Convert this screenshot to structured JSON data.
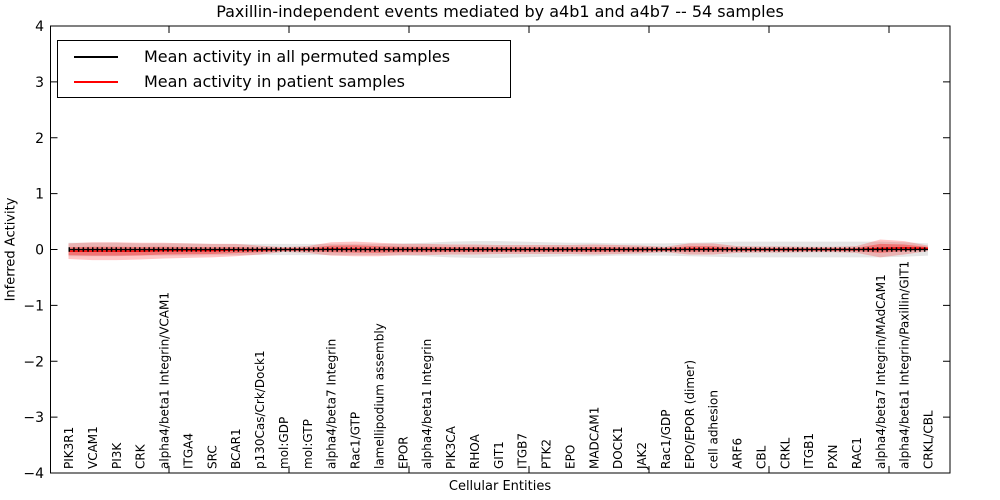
{
  "chart_data": {
    "type": "line",
    "title": "Paxillin-independent events mediated by a4b1 and a4b7 -- 54 samples",
    "xlabel": "Cellular Entities",
    "ylabel": "Inferred Activity",
    "ylim": [
      -4,
      4
    ],
    "yticks": [
      "4",
      "3",
      "2",
      "1",
      "0",
      "−1",
      "−2",
      "−3",
      "−4"
    ],
    "grid": false,
    "legend_position": "upper left",
    "categories": [
      "PIK3R1",
      "VCAM1",
      "PI3K",
      "CRK",
      "alpha4/beta1 Integrin/VCAM1",
      "ITGA4",
      "SRC",
      "BCAR1",
      "p130Cas/Crk/Dock1",
      "mol:GDP",
      "mol:GTP",
      "alpha4/beta7 Integrin",
      "Rac1/GTP",
      "lamellipodium assembly",
      "EPOR",
      "alpha4/beta1 Integrin",
      "PIK3CA",
      "RHOA",
      "GIT1",
      "ITGB7",
      "PTK2",
      "EPO",
      "MADCAM1",
      "DOCK1",
      "JAK2",
      "Rac1/GDP",
      "EPO/EPOR (dimer)",
      "cell adhesion",
      "ARF6",
      "CBL",
      "CRKL",
      "ITGB1",
      "PXN",
      "RAC1",
      "alpha4/beta7 Integrin/MAdCAM1",
      "alpha4/beta1 Integrin/Paxillin/GIT1",
      "CRKL/CBL"
    ],
    "series": [
      {
        "name": "Mean activity in all permuted samples",
        "color": "#000000",
        "band_color": "rgba(0,0,0,0.10)",
        "values": [
          0,
          0,
          0,
          0,
          0,
          0,
          0,
          0,
          0,
          0,
          0,
          0,
          0,
          0,
          0,
          0,
          0,
          0,
          0,
          0,
          0,
          0,
          0,
          0,
          0,
          0,
          0,
          0,
          0,
          0,
          0,
          0,
          0,
          0,
          0,
          0,
          0
        ],
        "band_halfwidth": [
          0.12,
          0.12,
          0.12,
          0.11,
          0.11,
          0.11,
          0.1,
          0.1,
          0.1,
          0.1,
          0.1,
          0.1,
          0.1,
          0.1,
          0.11,
          0.12,
          0.14,
          0.15,
          0.15,
          0.14,
          0.13,
          0.12,
          0.12,
          0.11,
          0.11,
          0.11,
          0.12,
          0.13,
          0.14,
          0.14,
          0.14,
          0.14,
          0.14,
          0.14,
          0.14,
          0.13,
          0.11
        ]
      },
      {
        "name": "Mean activity in patient samples",
        "color": "#ff0000",
        "band_color": "rgba(255,0,0,0.22)",
        "inner_band_color": "rgba(255,0,0,0.35)",
        "values": [
          -0.03,
          -0.03,
          -0.03,
          -0.03,
          -0.02,
          -0.02,
          -0.02,
          -0.01,
          -0.01,
          0,
          0,
          0.01,
          0.01,
          0,
          0,
          0,
          0,
          0,
          0,
          0,
          0,
          0,
          0,
          0,
          0,
          0,
          0.01,
          0.01,
          0,
          0,
          0,
          0,
          0,
          0,
          0.02,
          0.03,
          0.02
        ],
        "band_halfwidth": [
          0.14,
          0.16,
          0.16,
          0.15,
          0.14,
          0.13,
          0.12,
          0.11,
          0.08,
          0.045,
          0.06,
          0.12,
          0.13,
          0.12,
          0.1,
          0.1,
          0.09,
          0.09,
          0.08,
          0.08,
          0.08,
          0.08,
          0.09,
          0.08,
          0.07,
          0.05,
          0.1,
          0.1,
          0.06,
          0.055,
          0.055,
          0.05,
          0.05,
          0.06,
          0.16,
          0.12,
          0.05
        ]
      }
    ]
  }
}
